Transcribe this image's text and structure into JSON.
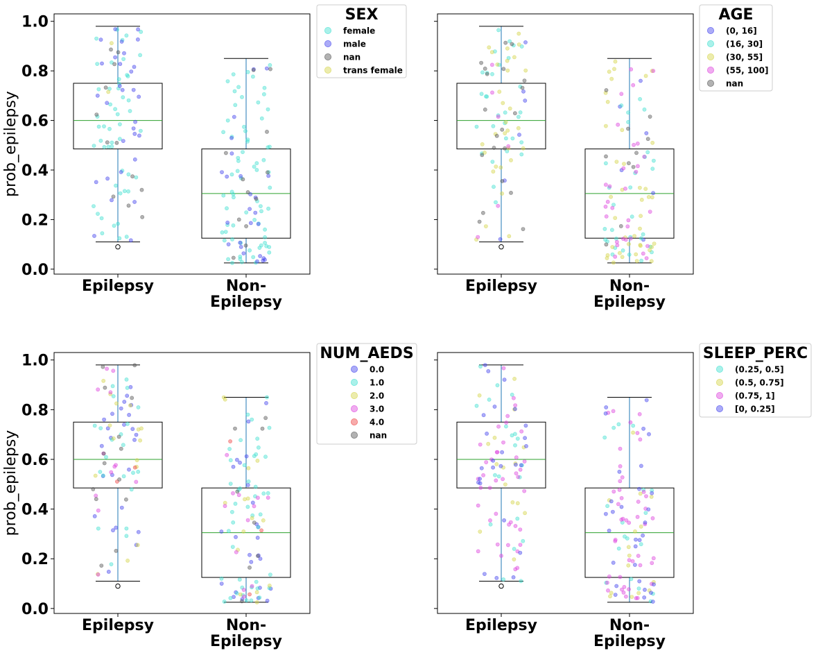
{
  "chart_data": [
    {
      "type": "box",
      "ylabel": "prob_epilepsy",
      "categories": [
        "Epilepsy",
        "Non-\nEpilepsy"
      ],
      "ylim": [
        -0.02,
        1.03
      ],
      "yticks": [
        "0.0",
        "0.2",
        "0.4",
        "0.6",
        "0.8",
        "1.0"
      ],
      "boxes": [
        {
          "category": "Epilepsy",
          "whisker_low": 0.11,
          "q1": 0.485,
          "median": 0.6,
          "q3": 0.75,
          "whisker_high": 0.98,
          "outliers": [
            0.09
          ]
        },
        {
          "category": "Non-Epilepsy",
          "whisker_low": 0.025,
          "q1": 0.125,
          "median": 0.305,
          "q3": 0.485,
          "whisker_high": 0.85,
          "outliers": []
        }
      ],
      "legend": {
        "title": "SEX",
        "placement": "outside right",
        "entries": [
          {
            "label": "female",
            "color": "#40e0d0"
          },
          {
            "label": "male",
            "color": "#4444ee"
          },
          {
            "label": "nan",
            "color": "#555555"
          },
          {
            "label": "trans female",
            "color": "#d4d44a"
          }
        ]
      },
      "jitter_groups": [
        {
          "category": 0,
          "entries": [
            0,
            1,
            2,
            3
          ],
          "weights": [
            50,
            30,
            12,
            2
          ]
        },
        {
          "category": 1,
          "entries": [
            0,
            1,
            2
          ],
          "weights": [
            70,
            25,
            12
          ]
        }
      ]
    },
    {
      "type": "box",
      "ylabel": "",
      "categories": [
        "Epilepsy",
        "Non-\nEpilepsy"
      ],
      "ylim": [
        -0.02,
        1.03
      ],
      "yticks": [
        "0.0",
        "0.2",
        "0.4",
        "0.6",
        "0.8",
        "1.0"
      ],
      "boxes": [
        {
          "category": "Epilepsy",
          "whisker_low": 0.11,
          "q1": 0.485,
          "median": 0.6,
          "q3": 0.75,
          "whisker_high": 0.98,
          "outliers": [
            0.09
          ]
        },
        {
          "category": "Non-Epilepsy",
          "whisker_low": 0.025,
          "q1": 0.125,
          "median": 0.305,
          "q3": 0.485,
          "whisker_high": 0.85,
          "outliers": []
        }
      ],
      "legend": {
        "title": "AGE",
        "placement": "outside right",
        "entries": [
          {
            "label": "(0, 16]",
            "color": "#4444ee"
          },
          {
            "label": "(16, 30]",
            "color": "#40e0d0"
          },
          {
            "label": "(30, 55]",
            "color": "#d4d44a"
          },
          {
            "label": "(55, 100]",
            "color": "#dd44dd"
          },
          {
            "label": "nan",
            "color": "#555555"
          }
        ]
      },
      "jitter_groups": [
        {
          "category": 0,
          "entries": [
            0,
            1,
            2,
            3,
            4
          ],
          "weights": [
            6,
            30,
            30,
            6,
            20
          ]
        },
        {
          "category": 1,
          "entries": [
            0,
            1,
            2,
            3,
            4
          ],
          "weights": [
            6,
            30,
            40,
            30,
            10
          ]
        }
      ]
    },
    {
      "type": "box",
      "ylabel": "prob_epilepsy",
      "categories": [
        "Epilepsy",
        "Non-\nEpilepsy"
      ],
      "ylim": [
        -0.02,
        1.03
      ],
      "yticks": [
        "0.0",
        "0.2",
        "0.4",
        "0.6",
        "0.8",
        "1.0"
      ],
      "boxes": [
        {
          "category": "Epilepsy",
          "whisker_low": 0.11,
          "q1": 0.485,
          "median": 0.6,
          "q3": 0.75,
          "whisker_high": 0.98,
          "outliers": [
            0.09
          ]
        },
        {
          "category": "Non-Epilepsy",
          "whisker_low": 0.025,
          "q1": 0.125,
          "median": 0.305,
          "q3": 0.485,
          "whisker_high": 0.85,
          "outliers": []
        }
      ],
      "legend": {
        "title": "NUM_AEDS",
        "placement": "outside right",
        "entries": [
          {
            "label": "0.0",
            "color": "#4444ee"
          },
          {
            "label": "1.0",
            "color": "#40e0d0"
          },
          {
            "label": "2.0",
            "color": "#d4d44a"
          },
          {
            "label": "3.0",
            "color": "#dd44dd"
          },
          {
            "label": "4.0",
            "color": "#ee4444"
          },
          {
            "label": "nan",
            "color": "#555555"
          }
        ]
      },
      "jitter_groups": [
        {
          "category": 0,
          "entries": [
            0,
            1,
            2,
            3,
            4,
            5
          ],
          "weights": [
            25,
            22,
            15,
            12,
            2,
            14
          ]
        },
        {
          "category": 1,
          "entries": [
            0,
            1,
            2,
            3,
            4,
            5
          ],
          "weights": [
            25,
            45,
            15,
            12,
            3,
            8
          ]
        }
      ]
    },
    {
      "type": "box",
      "ylabel": "",
      "categories": [
        "Epilepsy",
        "Non-\nEpilepsy"
      ],
      "ylim": [
        -0.02,
        1.03
      ],
      "yticks": [
        "0.0",
        "0.2",
        "0.4",
        "0.6",
        "0.8",
        "1.0"
      ],
      "boxes": [
        {
          "category": "Epilepsy",
          "whisker_low": 0.11,
          "q1": 0.485,
          "median": 0.6,
          "q3": 0.75,
          "whisker_high": 0.98,
          "outliers": [
            0.09
          ]
        },
        {
          "category": "Non-Epilepsy",
          "whisker_low": 0.025,
          "q1": 0.125,
          "median": 0.305,
          "q3": 0.485,
          "whisker_high": 0.85,
          "outliers": []
        }
      ],
      "legend": {
        "title": "SLEEP_PERC",
        "placement": "outside right",
        "entries": [
          {
            "label": "(0.25, 0.5]",
            "color": "#40e0d0"
          },
          {
            "label": "(0.5, 0.75]",
            "color": "#d4d44a"
          },
          {
            "label": "(0.75, 1]",
            "color": "#dd44dd"
          },
          {
            "label": "[0, 0.25]",
            "color": "#4444ee"
          }
        ]
      },
      "jitter_groups": [
        {
          "category": 0,
          "entries": [
            0,
            1,
            2,
            3
          ],
          "weights": [
            20,
            15,
            40,
            25
          ]
        },
        {
          "category": 1,
          "entries": [
            0,
            1,
            2,
            3
          ],
          "weights": [
            18,
            15,
            45,
            30
          ]
        }
      ]
    }
  ]
}
